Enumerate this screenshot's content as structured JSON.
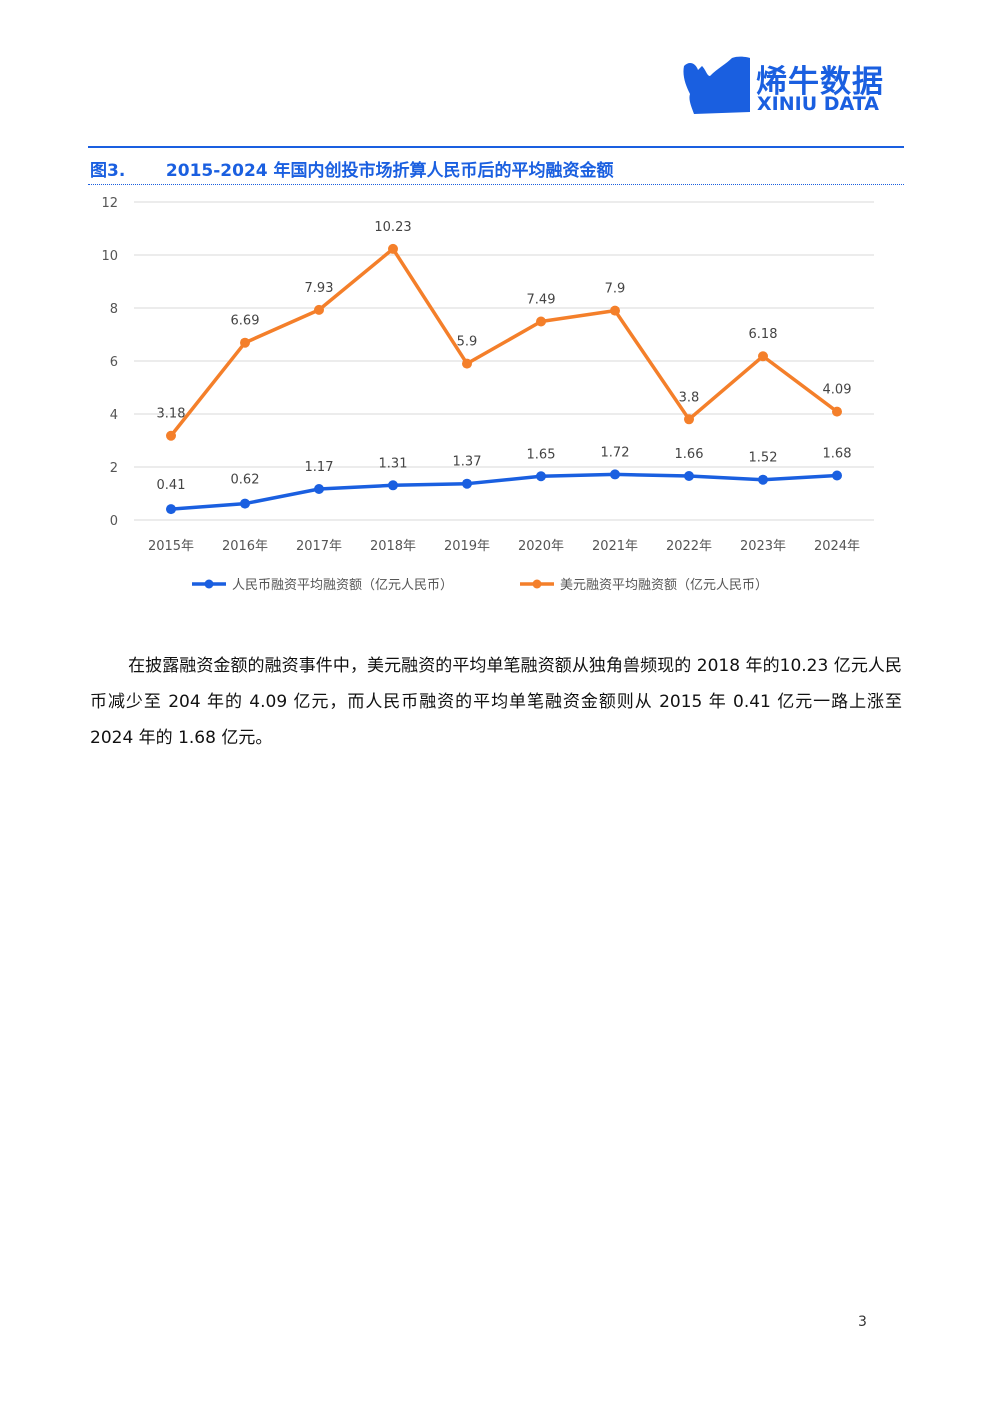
{
  "brand": {
    "name_cn": "烯牛数据",
    "name_en": "XINIU DATA",
    "color": "#1a5fe0"
  },
  "figure": {
    "label": "图3.",
    "title": "2015-2024 年国内创投市场折算人民币后的平均融资金额"
  },
  "chart_data": {
    "type": "line",
    "categories": [
      "2015年",
      "2016年",
      "2017年",
      "2018年",
      "2019年",
      "2020年",
      "2021年",
      "2022年",
      "2023年",
      "2024年"
    ],
    "y_ticks": [
      "0",
      "2",
      "4",
      "6",
      "8",
      "10",
      "12"
    ],
    "ylim": [
      0,
      12
    ],
    "grid": true,
    "legend_position": "bottom",
    "series": [
      {
        "name": "人民币融资平均融资额（亿元人民币）",
        "color": "#1a5fe0",
        "values": [
          0.41,
          0.62,
          1.17,
          1.31,
          1.37,
          1.65,
          1.72,
          1.66,
          1.52,
          1.68
        ],
        "labels": [
          "0.41",
          "0.62",
          "1.17",
          "1.31",
          "1.37",
          "1.65",
          "1.72",
          "1.66",
          "1.52",
          "1.68"
        ]
      },
      {
        "name": "美元融资平均融资额（亿元人民币）",
        "color": "#f47f2a",
        "values": [
          3.18,
          6.69,
          7.93,
          10.23,
          5.9,
          7.49,
          7.9,
          3.8,
          6.18,
          4.09
        ],
        "labels": [
          "3.18",
          "6.69",
          "7.93",
          "10.23",
          "5.9",
          "7.49",
          "7.9",
          "3.8",
          "6.18",
          "4.09"
        ]
      }
    ]
  },
  "paragraph": "在披露融资金额的融资事件中，美元融资的平均单笔融资额从独角兽频现的  2018  年的10.23 亿元人民币减少至 204 年的 4.09 亿元，而人民币融资的平均单笔融资金额则从 2015 年 0.41 亿元一路上涨至 2024 年的 1.68 亿元。",
  "page_number": "3"
}
